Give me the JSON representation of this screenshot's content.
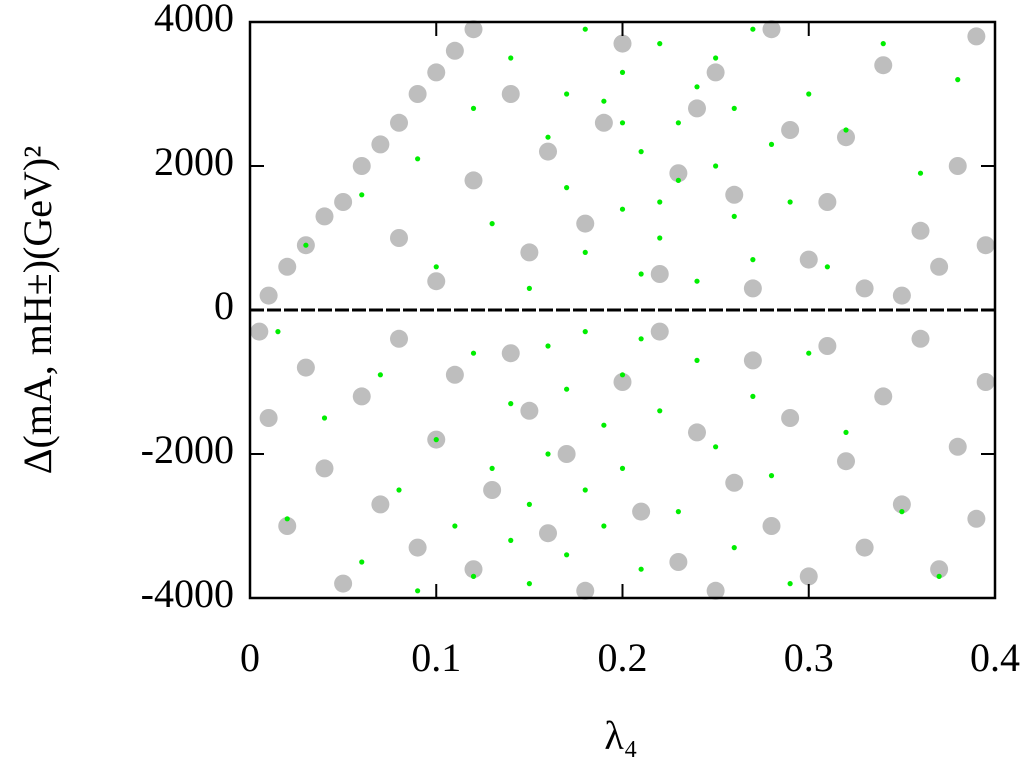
{
  "chart_data": {
    "type": "scatter",
    "xlabel": "λ₄",
    "ylabel": "Δ(mA, mH±)(GeV)²",
    "xlim": [
      0,
      0.4
    ],
    "xticks": [
      0,
      0.1,
      0.2,
      0.3,
      0.4
    ],
    "ylim": [
      -4000,
      4000
    ],
    "yticks": [
      -4000,
      -2000,
      0,
      2000,
      4000
    ],
    "hline": 0,
    "series": [
      {
        "color": "#bebebe",
        "x": [
          0.01,
          0.02,
          0.03,
          0.04,
          0.05,
          0.06,
          0.07,
          0.08,
          0.09,
          0.1,
          0.11,
          0.12,
          0.14,
          0.16,
          0.18,
          0.2,
          0.22,
          0.24,
          0.26,
          0.28,
          0.3,
          0.32,
          0.34,
          0.36,
          0.38,
          0.39,
          0.33,
          0.37,
          0.15,
          0.12,
          0.08,
          0.1,
          0.25,
          0.31,
          0.35,
          0.27,
          0.19,
          0.23,
          0.29,
          0.395,
          0.005,
          0.01,
          0.02,
          0.03,
          0.04,
          0.05,
          0.06,
          0.07,
          0.08,
          0.09,
          0.1,
          0.11,
          0.12,
          0.13,
          0.14,
          0.15,
          0.16,
          0.17,
          0.18,
          0.2,
          0.21,
          0.22,
          0.23,
          0.24,
          0.26,
          0.27,
          0.28,
          0.29,
          0.3,
          0.31,
          0.32,
          0.33,
          0.34,
          0.35,
          0.36,
          0.37,
          0.38,
          0.39,
          0.395,
          0.25
        ],
        "values": [
          200,
          600,
          900,
          1300,
          1500,
          2000,
          2300,
          2600,
          3000,
          3300,
          3600,
          3900,
          3000,
          2200,
          1200,
          3700,
          500,
          2800,
          1600,
          3900,
          700,
          2400,
          3400,
          1100,
          2000,
          3800,
          300,
          600,
          800,
          1800,
          1000,
          400,
          3300,
          1500,
          200,
          300,
          2600,
          1900,
          2500,
          900,
          -300,
          -1500,
          -3000,
          -800,
          -2200,
          -3800,
          -1200,
          -2700,
          -400,
          -3300,
          -1800,
          -900,
          -3600,
          -2500,
          -600,
          -1400,
          -3100,
          -2000,
          -3900,
          -1000,
          -2800,
          -300,
          -3500,
          -1700,
          -2400,
          -700,
          -3000,
          -1500,
          -3700,
          -500,
          -2100,
          -3300,
          -1200,
          -2700,
          -400,
          -3600,
          -1900,
          -2900,
          -1000,
          -3900
        ]
      },
      {
        "color": "#00ee00",
        "x": [
          0.03,
          0.06,
          0.09,
          0.1,
          0.12,
          0.13,
          0.14,
          0.15,
          0.16,
          0.17,
          0.18,
          0.18,
          0.19,
          0.2,
          0.2,
          0.21,
          0.21,
          0.22,
          0.22,
          0.23,
          0.23,
          0.24,
          0.24,
          0.25,
          0.25,
          0.26,
          0.26,
          0.27,
          0.27,
          0.28,
          0.29,
          0.3,
          0.31,
          0.32,
          0.34,
          0.36,
          0.38,
          0.2,
          0.17,
          0.22,
          0.015,
          0.02,
          0.04,
          0.06,
          0.07,
          0.08,
          0.09,
          0.1,
          0.11,
          0.12,
          0.12,
          0.13,
          0.14,
          0.14,
          0.15,
          0.15,
          0.16,
          0.16,
          0.17,
          0.17,
          0.18,
          0.18,
          0.19,
          0.19,
          0.2,
          0.2,
          0.21,
          0.21,
          0.22,
          0.23,
          0.24,
          0.25,
          0.26,
          0.27,
          0.28,
          0.3,
          0.32,
          0.35,
          0.37,
          0.29
        ],
        "values": [
          900,
          1600,
          2100,
          600,
          2800,
          1200,
          3500,
          300,
          2400,
          1700,
          3900,
          800,
          2900,
          1400,
          3300,
          500,
          2200,
          3700,
          1000,
          2600,
          1800,
          3100,
          400,
          2000,
          3500,
          1300,
          2800,
          700,
          3900,
          2300,
          1500,
          3000,
          600,
          2500,
          3700,
          1900,
          3200,
          2600,
          3000,
          1500,
          -300,
          -2900,
          -1500,
          -3500,
          -900,
          -2500,
          -3900,
          -1800,
          -3000,
          -600,
          -3700,
          -2200,
          -3200,
          -1300,
          -2700,
          -3800,
          -500,
          -2000,
          -3400,
          -1100,
          -2500,
          -300,
          -1600,
          -3000,
          -900,
          -2200,
          -400,
          -3600,
          -1400,
          -2800,
          -700,
          -1900,
          -3300,
          -1200,
          -2300,
          -600,
          -1700,
          -2800,
          -3700,
          -3800
        ]
      }
    ]
  }
}
